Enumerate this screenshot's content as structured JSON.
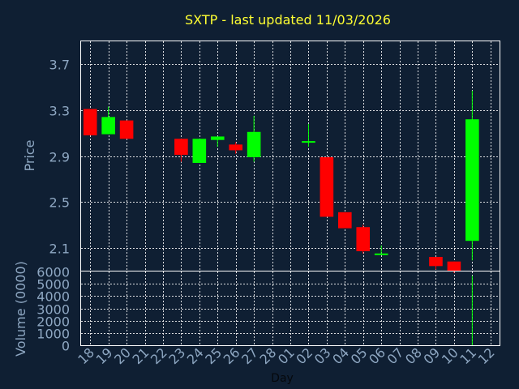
{
  "title": "SXTP - last updated 11/03/2026",
  "chart_data": {
    "type": "candlestick",
    "title": "SXTP - last updated 11/03/2026",
    "xlabel": "Day",
    "ylabel": "Price",
    "volume_label": "Volume (0000)",
    "ylim": [
      1.9,
      3.9
    ],
    "price_ticks": [
      "3.7",
      "3.3",
      "2.9",
      "2.5",
      "2.1"
    ],
    "volume_ylim": [
      0,
      6000
    ],
    "volume_ticks": [
      "6000",
      "5000",
      "4000",
      "3000",
      "2000",
      "1000",
      "0"
    ],
    "day_labels": [
      "18",
      "19",
      "20",
      "21",
      "22",
      "23",
      "24",
      "25",
      "26",
      "27",
      "28",
      "01",
      "02",
      "03",
      "04",
      "05",
      "06",
      "07",
      "08",
      "09",
      "10",
      "11",
      "12"
    ],
    "colors": {
      "up": "#00ff00",
      "down": "#ff0000",
      "background": "#0f1f33",
      "plot": "#0f1f33",
      "title": "#ffff33",
      "tick": "#8ea7c2"
    },
    "candles": [
      {
        "day": "18",
        "open": 3.31,
        "high": 3.31,
        "low": 3.08,
        "close": 3.08,
        "volume": 0
      },
      {
        "day": "19",
        "open": 3.09,
        "high": 3.33,
        "low": 3.09,
        "close": 3.24,
        "volume": 0
      },
      {
        "day": "20",
        "open": 3.21,
        "high": 3.21,
        "low": 3.05,
        "close": 3.05,
        "volume": 0
      },
      {
        "day": "23",
        "open": 3.05,
        "high": 3.05,
        "low": 2.85,
        "close": 2.91,
        "volume": 0
      },
      {
        "day": "24",
        "open": 2.84,
        "high": 3.05,
        "low": 2.84,
        "close": 3.05,
        "volume": 0
      },
      {
        "day": "25",
        "open": 3.04,
        "high": 3.07,
        "low": 2.98,
        "close": 3.07,
        "volume": 0
      },
      {
        "day": "26",
        "open": 3.0,
        "high": 3.02,
        "low": 2.92,
        "close": 2.95,
        "volume": 0
      },
      {
        "day": "27",
        "open": 2.89,
        "high": 3.25,
        "low": 2.85,
        "close": 3.11,
        "volume": 0
      },
      {
        "day": "02",
        "open": 3.02,
        "high": 3.18,
        "low": 2.98,
        "close": 3.03,
        "volume": 0
      },
      {
        "day": "03",
        "open": 2.89,
        "high": 2.89,
        "low": 2.37,
        "close": 2.37,
        "volume": 0
      },
      {
        "day": "04",
        "open": 2.41,
        "high": 2.41,
        "low": 2.27,
        "close": 2.27,
        "volume": 0
      },
      {
        "day": "05",
        "open": 2.28,
        "high": 2.3,
        "low": 2.05,
        "close": 2.07,
        "volume": 0
      },
      {
        "day": "06",
        "open": 2.04,
        "high": 2.12,
        "low": 2.04,
        "close": 2.05,
        "volume": 0
      },
      {
        "day": "09",
        "open": 2.02,
        "high": 2.02,
        "low": 1.91,
        "close": 1.94,
        "volume": 0
      },
      {
        "day": "10",
        "open": 1.98,
        "high": 1.98,
        "low": 1.88,
        "close": 1.9,
        "volume": 0
      },
      {
        "day": "11",
        "open": 2.16,
        "high": 3.47,
        "low": 1.99,
        "close": 3.22,
        "volume": 5650
      }
    ]
  }
}
